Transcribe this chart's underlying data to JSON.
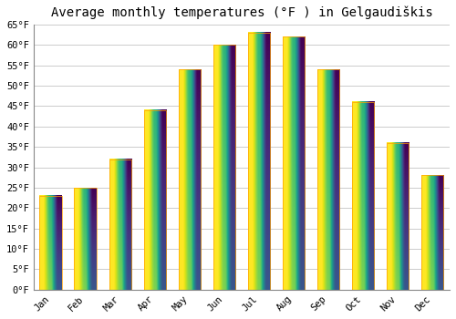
{
  "title": "Average monthly temperatures (°F ) in Gelgaudiškis",
  "months": [
    "Jan",
    "Feb",
    "Mar",
    "Apr",
    "May",
    "Jun",
    "Jul",
    "Aug",
    "Sep",
    "Oct",
    "Nov",
    "Dec"
  ],
  "values": [
    23,
    25,
    32,
    44,
    54,
    60,
    63,
    62,
    54,
    46,
    36,
    28
  ],
  "bar_color_top": "#FFCC44",
  "bar_color_bottom": "#FFA500",
  "background_color": "#FFFFFF",
  "grid_color": "#CCCCCC",
  "ylim": [
    0,
    65
  ],
  "yticks": [
    0,
    5,
    10,
    15,
    20,
    25,
    30,
    35,
    40,
    45,
    50,
    55,
    60,
    65
  ],
  "tick_label_suffix": "°F",
  "title_fontsize": 10,
  "tick_fontsize": 7.5,
  "bar_width": 0.65
}
